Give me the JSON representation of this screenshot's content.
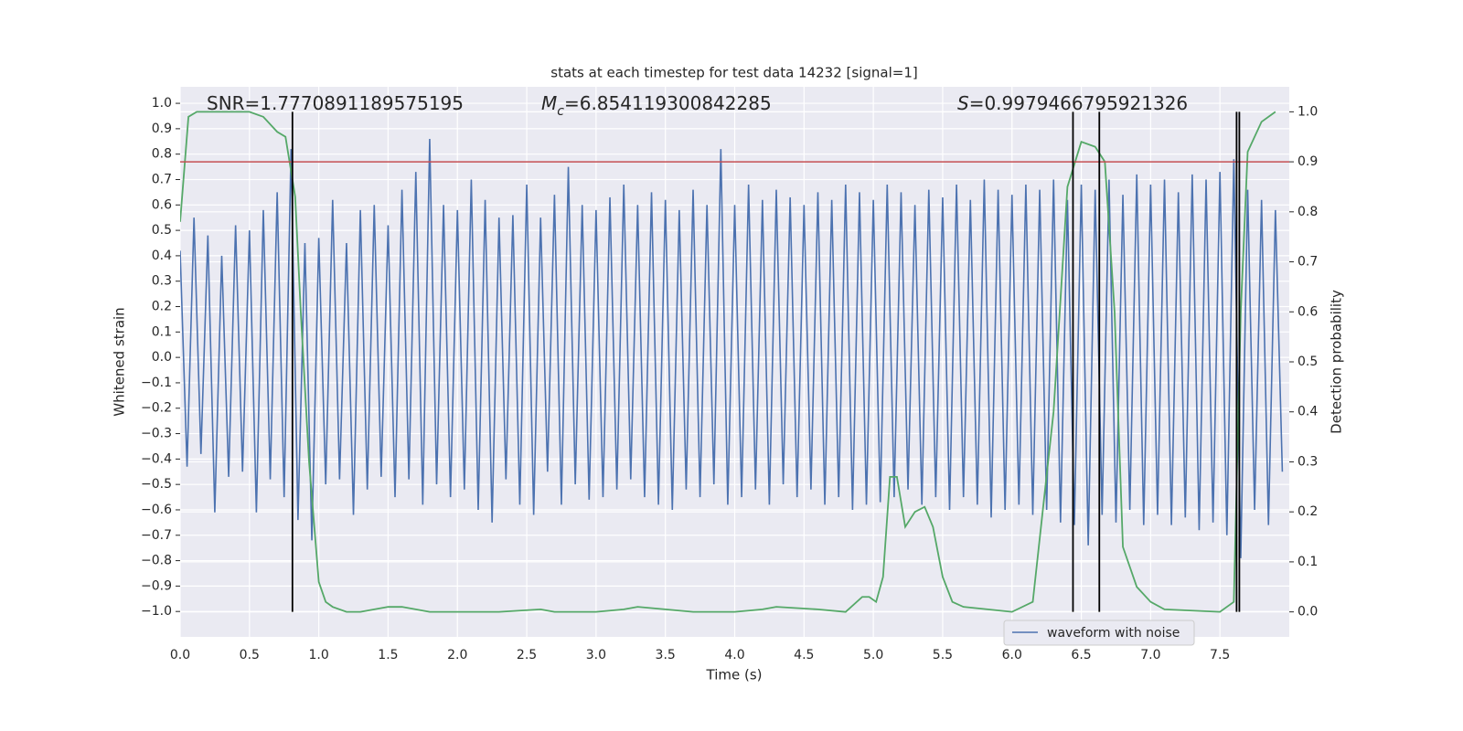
{
  "chart_data": {
    "type": "line",
    "title": "stats at each timestep for test data 14232 [signal=1]",
    "x_label": "Time (s)",
    "y_label": "Whitened strain",
    "y2_label": "Detection probability",
    "xlim": [
      0,
      8
    ],
    "ylim": [
      -1.1,
      1.065
    ],
    "y2lim": [
      -0.05,
      1.05
    ],
    "grid": true,
    "legend": "lower right",
    "xticks": [
      {
        "value": 0,
        "label": "0.0"
      },
      {
        "value": 0.5,
        "label": "0.5"
      },
      {
        "value": 1,
        "label": "1.0"
      },
      {
        "value": 1.5,
        "label": "1.5"
      },
      {
        "value": 2,
        "label": "2.0"
      },
      {
        "value": 2.5,
        "label": "2.5"
      },
      {
        "value": 3,
        "label": "3.0"
      },
      {
        "value": 3.5,
        "label": "3.5"
      },
      {
        "value": 4,
        "label": "4.0"
      },
      {
        "value": 4.5,
        "label": "4.5"
      },
      {
        "value": 5,
        "label": "5.0"
      },
      {
        "value": 5.5,
        "label": "5.5"
      },
      {
        "value": 6,
        "label": "6.0"
      },
      {
        "value": 6.5,
        "label": "6.5"
      },
      {
        "value": 7,
        "label": "7.0"
      },
      {
        "value": 7.5,
        "label": "7.5"
      }
    ],
    "yticks": [
      {
        "value": -1,
        "label": "−1.0"
      },
      {
        "value": -0.9,
        "label": "−0.9"
      },
      {
        "value": -0.8,
        "label": "−0.8"
      },
      {
        "value": -0.7,
        "label": "−0.7"
      },
      {
        "value": -0.6,
        "label": "−0.6"
      },
      {
        "value": -0.5,
        "label": "−0.5"
      },
      {
        "value": -0.4,
        "label": "−0.4"
      },
      {
        "value": -0.3,
        "label": "−0.3"
      },
      {
        "value": -0.2,
        "label": "−0.2"
      },
      {
        "value": -0.1,
        "label": "−0.1"
      },
      {
        "value": 0,
        "label": "0.0"
      },
      {
        "value": 0.1,
        "label": "0.1"
      },
      {
        "value": 0.2,
        "label": "0.2"
      },
      {
        "value": 0.3,
        "label": "0.3"
      },
      {
        "value": 0.4,
        "label": "0.4"
      },
      {
        "value": 0.5,
        "label": "0.5"
      },
      {
        "value": 0.6,
        "label": "0.6"
      },
      {
        "value": 0.7,
        "label": "0.7"
      },
      {
        "value": 0.8,
        "label": "0.8"
      },
      {
        "value": 0.9,
        "label": "0.9"
      },
      {
        "value": 1,
        "label": "1.0"
      }
    ],
    "y2ticks": [
      {
        "value": 0,
        "label": "0.0"
      },
      {
        "value": 0.1,
        "label": "0.1"
      },
      {
        "value": 0.2,
        "label": "0.2"
      },
      {
        "value": 0.3,
        "label": "0.3"
      },
      {
        "value": 0.4,
        "label": "0.4"
      },
      {
        "value": 0.5,
        "label": "0.5"
      },
      {
        "value": 0.6,
        "label": "0.6"
      },
      {
        "value": 0.7,
        "label": "0.7"
      },
      {
        "value": 0.8,
        "label": "0.8"
      },
      {
        "value": 0.9,
        "label": "0.9"
      },
      {
        "value": 1,
        "label": "1.0"
      }
    ],
    "series": [
      {
        "name": "waveform with noise",
        "color": "#4c72b0",
        "x": [
          0,
          0.05,
          0.1,
          0.15,
          0.2,
          0.25,
          0.3,
          0.35,
          0.4,
          0.45,
          0.5,
          0.55,
          0.6,
          0.65,
          0.7,
          0.75,
          0.8,
          0.85,
          0.9,
          0.95,
          1,
          1.05,
          1.1,
          1.15,
          1.2,
          1.25,
          1.3,
          1.35,
          1.4,
          1.45,
          1.5,
          1.55,
          1.6,
          1.65,
          1.7,
          1.75,
          1.8,
          1.85,
          1.9,
          1.95,
          2,
          2.05,
          2.1,
          2.15,
          2.2,
          2.25,
          2.3,
          2.35,
          2.4,
          2.45,
          2.5,
          2.55,
          2.6,
          2.65,
          2.7,
          2.75,
          2.8,
          2.85,
          2.9,
          2.95,
          3,
          3.05,
          3.1,
          3.15,
          3.2,
          3.25,
          3.3,
          3.35,
          3.4,
          3.45,
          3.5,
          3.55,
          3.6,
          3.65,
          3.7,
          3.75,
          3.8,
          3.85,
          3.9,
          3.95,
          4,
          4.05,
          4.1,
          4.15,
          4.2,
          4.25,
          4.3,
          4.35,
          4.4,
          4.45,
          4.5,
          4.55,
          4.6,
          4.65,
          4.7,
          4.75,
          4.8,
          4.85,
          4.9,
          4.95,
          5,
          5.05,
          5.1,
          5.15,
          5.2,
          5.25,
          5.3,
          5.35,
          5.4,
          5.45,
          5.5,
          5.55,
          5.6,
          5.65,
          5.7,
          5.75,
          5.8,
          5.85,
          5.9,
          5.95,
          6,
          6.05,
          6.1,
          6.15,
          6.2,
          6.25,
          6.3,
          6.35,
          6.4,
          6.45,
          6.5,
          6.55,
          6.6,
          6.65,
          6.7,
          6.75,
          6.8,
          6.85,
          6.9,
          6.95,
          7,
          7.05,
          7.1,
          7.15,
          7.2,
          7.25,
          7.3,
          7.35,
          7.4,
          7.45,
          7.5,
          7.55,
          7.6,
          7.65,
          7.7,
          7.75,
          7.8,
          7.85,
          7.9,
          7.95
        ],
        "values": [
          0.42,
          -0.43,
          0.55,
          -0.38,
          0.48,
          -0.61,
          0.4,
          -0.47,
          0.52,
          -0.45,
          0.5,
          -0.61,
          0.58,
          -0.48,
          0.65,
          -0.55,
          0.82,
          -0.64,
          0.45,
          -0.72,
          0.47,
          -0.5,
          0.62,
          -0.48,
          0.45,
          -0.62,
          0.58,
          -0.52,
          0.6,
          -0.47,
          0.52,
          -0.55,
          0.66,
          -0.48,
          0.73,
          -0.58,
          0.86,
          -0.5,
          0.6,
          -0.55,
          0.58,
          -0.52,
          0.7,
          -0.6,
          0.62,
          -0.65,
          0.55,
          -0.48,
          0.56,
          -0.58,
          0.68,
          -0.62,
          0.55,
          -0.45,
          0.64,
          -0.58,
          0.75,
          -0.5,
          0.6,
          -0.56,
          0.58,
          -0.55,
          0.63,
          -0.52,
          0.68,
          -0.48,
          0.6,
          -0.55,
          0.65,
          -0.58,
          0.62,
          -0.6,
          0.58,
          -0.52,
          0.66,
          -0.55,
          0.6,
          -0.5,
          0.82,
          -0.58,
          0.6,
          -0.55,
          0.68,
          -0.52,
          0.62,
          -0.58,
          0.66,
          -0.5,
          0.63,
          -0.55,
          0.6,
          -0.52,
          0.65,
          -0.58,
          0.62,
          -0.55,
          0.68,
          -0.6,
          0.65,
          -0.58,
          0.62,
          -0.57,
          0.68,
          -0.55,
          0.65,
          -0.52,
          0.6,
          -0.58,
          0.66,
          -0.55,
          0.63,
          -0.6,
          0.68,
          -0.55,
          0.62,
          -0.58,
          0.7,
          -0.63,
          0.66,
          -0.6,
          0.64,
          -0.58,
          0.68,
          -0.62,
          0.66,
          -0.6,
          0.7,
          -0.65,
          0.62,
          -0.66,
          0.68,
          -0.74,
          0.66,
          -0.62,
          0.7,
          -0.65,
          0.64,
          -0.6,
          0.72,
          -0.66,
          0.68,
          -0.62,
          0.7,
          -0.66,
          0.65,
          -0.63,
          0.72,
          -0.68,
          0.7,
          -0.65,
          0.73,
          -0.7,
          0.78,
          -0.79,
          0.66,
          -0.6,
          0.62,
          -0.66,
          0.58,
          -0.45
        ]
      },
      {
        "color": "#55a868",
        "axis": "y2",
        "x": [
          0,
          0.06,
          0.12,
          0.3,
          0.5,
          0.6,
          0.7,
          0.76,
          0.83,
          0.87,
          0.93,
          1.0,
          1.05,
          1.1,
          1.2,
          1.3,
          1.5,
          1.6,
          1.8,
          2.0,
          2.3,
          2.6,
          2.7,
          3.0,
          3.2,
          3.3,
          3.5,
          3.7,
          4.0,
          4.2,
          4.3,
          4.6,
          4.8,
          4.92,
          4.97,
          5.02,
          5.07,
          5.12,
          5.17,
          5.23,
          5.3,
          5.37,
          5.43,
          5.5,
          5.57,
          5.65,
          6.0,
          6.15,
          6.3,
          6.4,
          6.5,
          6.6,
          6.67,
          6.74,
          6.8,
          6.9,
          7.0,
          7.1,
          7.5,
          7.6,
          7.65,
          7.7,
          7.8,
          7.9
        ],
        "values": [
          0.78,
          0.99,
          1.0,
          1.0,
          1.0,
          0.99,
          0.96,
          0.95,
          0.83,
          0.6,
          0.3,
          0.06,
          0.02,
          0.01,
          0.0,
          0.0,
          0.01,
          0.01,
          0.0,
          0.0,
          0.0,
          0.005,
          0.0,
          0.0,
          0.005,
          0.01,
          0.005,
          0.0,
          0.0,
          0.005,
          0.01,
          0.005,
          0.0,
          0.03,
          0.03,
          0.02,
          0.07,
          0.27,
          0.27,
          0.17,
          0.2,
          0.21,
          0.17,
          0.07,
          0.02,
          0.01,
          0.0,
          0.02,
          0.4,
          0.85,
          0.94,
          0.93,
          0.9,
          0.6,
          0.13,
          0.05,
          0.02,
          0.005,
          0.0,
          0.02,
          0.6,
          0.92,
          0.98,
          1.0
        ]
      }
    ],
    "hline": {
      "y": 0.9,
      "axis": "y2",
      "color": "#c44e52"
    },
    "vlines": {
      "x": [
        0.81,
        6.44,
        6.63,
        7.62,
        7.64
      ],
      "ymin": 0,
      "ymax": 1.0,
      "axis": "y2",
      "color": "#000000"
    },
    "annotations": [
      {
        "text": "SNR=1.7770891189575195"
      },
      {
        "symbol": "M",
        "subscript": "c",
        "text": "=6.854119300842285"
      },
      {
        "symbol": "S",
        "text": "=0.9979466795921326"
      }
    ]
  }
}
